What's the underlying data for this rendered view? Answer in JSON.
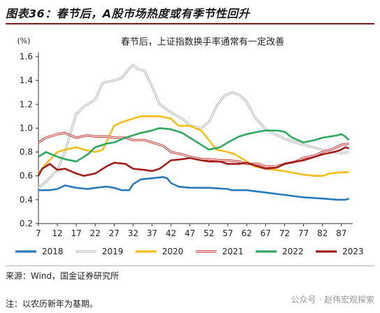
{
  "figure_title": "图表36：春节后，A股市场热度或有季节性回升",
  "source_text": "来源：Wind，国金证券研究所",
  "note_text": "注：以农历新年为基期。",
  "watermark_text": "公众号 · 赵伟宏观探索",
  "chart_data": {
    "type": "line",
    "title": "春节后，上证指数换手率通常有一定改善",
    "ylabel": "(%)",
    "xlabel": "",
    "ylim": [
      0.2,
      1.6
    ],
    "yticks": [
      "0.2",
      "0.4",
      "0.6",
      "0.8",
      "1.0",
      "1.2",
      "1.4",
      "1.6"
    ],
    "xlim": [
      7,
      90
    ],
    "xticks": [
      "7",
      "12",
      "17",
      "22",
      "27",
      "32",
      "37",
      "42",
      "47",
      "52",
      "57",
      "62",
      "67",
      "72",
      "77",
      "82",
      "87"
    ],
    "grid": false,
    "legend_position": "bottom",
    "series": [
      {
        "name": "2018",
        "color": "#2a7ab8",
        "style": "solid",
        "x": [
          7,
          10,
          12,
          14,
          17,
          20,
          22,
          25,
          27,
          29,
          31,
          32,
          34,
          37,
          40,
          41,
          42,
          44,
          47,
          52,
          57,
          58,
          62,
          67,
          72,
          77,
          82,
          86,
          88,
          89
        ],
        "y": [
          0.48,
          0.48,
          0.49,
          0.52,
          0.5,
          0.49,
          0.5,
          0.51,
          0.5,
          0.48,
          0.48,
          0.53,
          0.57,
          0.58,
          0.59,
          0.58,
          0.54,
          0.51,
          0.5,
          0.5,
          0.49,
          0.48,
          0.48,
          0.46,
          0.44,
          0.42,
          0.41,
          0.4,
          0.4,
          0.41
        ]
      },
      {
        "name": "2019",
        "color": "#b8b8b8",
        "style": "double",
        "x": [
          7,
          9,
          12,
          14,
          17,
          19,
          22,
          24,
          27,
          29,
          31,
          32,
          33,
          35,
          37,
          39,
          42,
          45,
          47,
          50,
          52,
          54,
          56,
          58,
          60,
          62,
          64,
          67,
          72,
          77,
          82,
          85,
          87,
          89
        ],
        "y": [
          0.5,
          0.55,
          0.65,
          0.8,
          1.12,
          1.18,
          1.24,
          1.38,
          1.4,
          1.42,
          1.5,
          1.53,
          1.5,
          1.48,
          1.35,
          1.2,
          1.13,
          1.08,
          1.02,
          1.0,
          1.05,
          1.18,
          1.27,
          1.3,
          1.28,
          1.22,
          1.1,
          0.99,
          0.91,
          0.86,
          0.82,
          0.8,
          0.79,
          0.8
        ]
      },
      {
        "name": "2020",
        "color": "#f2be1a",
        "style": "solid",
        "x": [
          7,
          9,
          12,
          14,
          17,
          19,
          22,
          24,
          27,
          29,
          32,
          34,
          37,
          39,
          42,
          44,
          47,
          50,
          52,
          54,
          57,
          59,
          62,
          64,
          67,
          72,
          77,
          80,
          82,
          84,
          87,
          89
        ],
        "y": [
          0.62,
          0.7,
          0.8,
          0.82,
          0.84,
          0.82,
          0.8,
          0.82,
          1.02,
          1.05,
          1.08,
          1.1,
          1.1,
          1.1,
          1.08,
          1.02,
          1.02,
          0.98,
          0.9,
          0.82,
          0.8,
          0.78,
          0.72,
          0.68,
          0.66,
          0.64,
          0.61,
          0.6,
          0.6,
          0.62,
          0.63,
          0.63
        ]
      },
      {
        "name": "2021",
        "color": "#c43030",
        "style": "double",
        "x": [
          7,
          9,
          12,
          14,
          17,
          20,
          22,
          25,
          27,
          30,
          32,
          35,
          37,
          40,
          42,
          45,
          47,
          50,
          52,
          55,
          57,
          60,
          62,
          65,
          67,
          70,
          72,
          75,
          77,
          80,
          82,
          85,
          87,
          89
        ],
        "y": [
          0.88,
          0.92,
          0.95,
          0.96,
          0.92,
          0.94,
          0.93,
          0.93,
          0.92,
          0.92,
          0.9,
          0.9,
          0.88,
          0.85,
          0.8,
          0.78,
          0.76,
          0.74,
          0.74,
          0.73,
          0.73,
          0.72,
          0.7,
          0.7,
          0.68,
          0.68,
          0.7,
          0.72,
          0.75,
          0.77,
          0.8,
          0.83,
          0.86,
          0.87
        ]
      },
      {
        "name": "2022",
        "color": "#2fa860",
        "style": "solid",
        "x": [
          7,
          9,
          12,
          14,
          17,
          20,
          22,
          25,
          27,
          30,
          32,
          34,
          37,
          39,
          42,
          45,
          47,
          50,
          52,
          55,
          57,
          60,
          62,
          65,
          67,
          70,
          72,
          74,
          77,
          80,
          82,
          84,
          86,
          87,
          88,
          89
        ],
        "y": [
          0.76,
          0.8,
          0.76,
          0.74,
          0.72,
          0.78,
          0.84,
          0.87,
          0.88,
          0.92,
          0.94,
          0.96,
          0.98,
          1.0,
          0.99,
          0.96,
          0.92,
          0.86,
          0.82,
          0.84,
          0.88,
          0.93,
          0.95,
          0.97,
          0.98,
          0.98,
          0.97,
          0.92,
          0.88,
          0.9,
          0.92,
          0.93,
          0.94,
          0.95,
          0.93,
          0.9
        ]
      },
      {
        "name": "2023",
        "color": "#a41d1d",
        "style": "solid",
        "x": [
          7,
          8,
          10,
          12,
          14,
          17,
          19,
          22,
          25,
          27,
          30,
          32,
          35,
          37,
          39,
          42,
          45,
          47,
          50,
          52,
          55,
          57,
          60,
          62,
          65,
          67,
          70,
          72,
          75,
          77,
          80,
          82,
          85,
          87,
          88,
          89
        ],
        "y": [
          0.6,
          0.66,
          0.7,
          0.65,
          0.66,
          0.62,
          0.6,
          0.62,
          0.68,
          0.71,
          0.7,
          0.66,
          0.65,
          0.64,
          0.66,
          0.73,
          0.74,
          0.75,
          0.73,
          0.72,
          0.72,
          0.7,
          0.7,
          0.71,
          0.68,
          0.66,
          0.67,
          0.7,
          0.72,
          0.73,
          0.76,
          0.78,
          0.8,
          0.82,
          0.84,
          0.83
        ]
      }
    ]
  }
}
